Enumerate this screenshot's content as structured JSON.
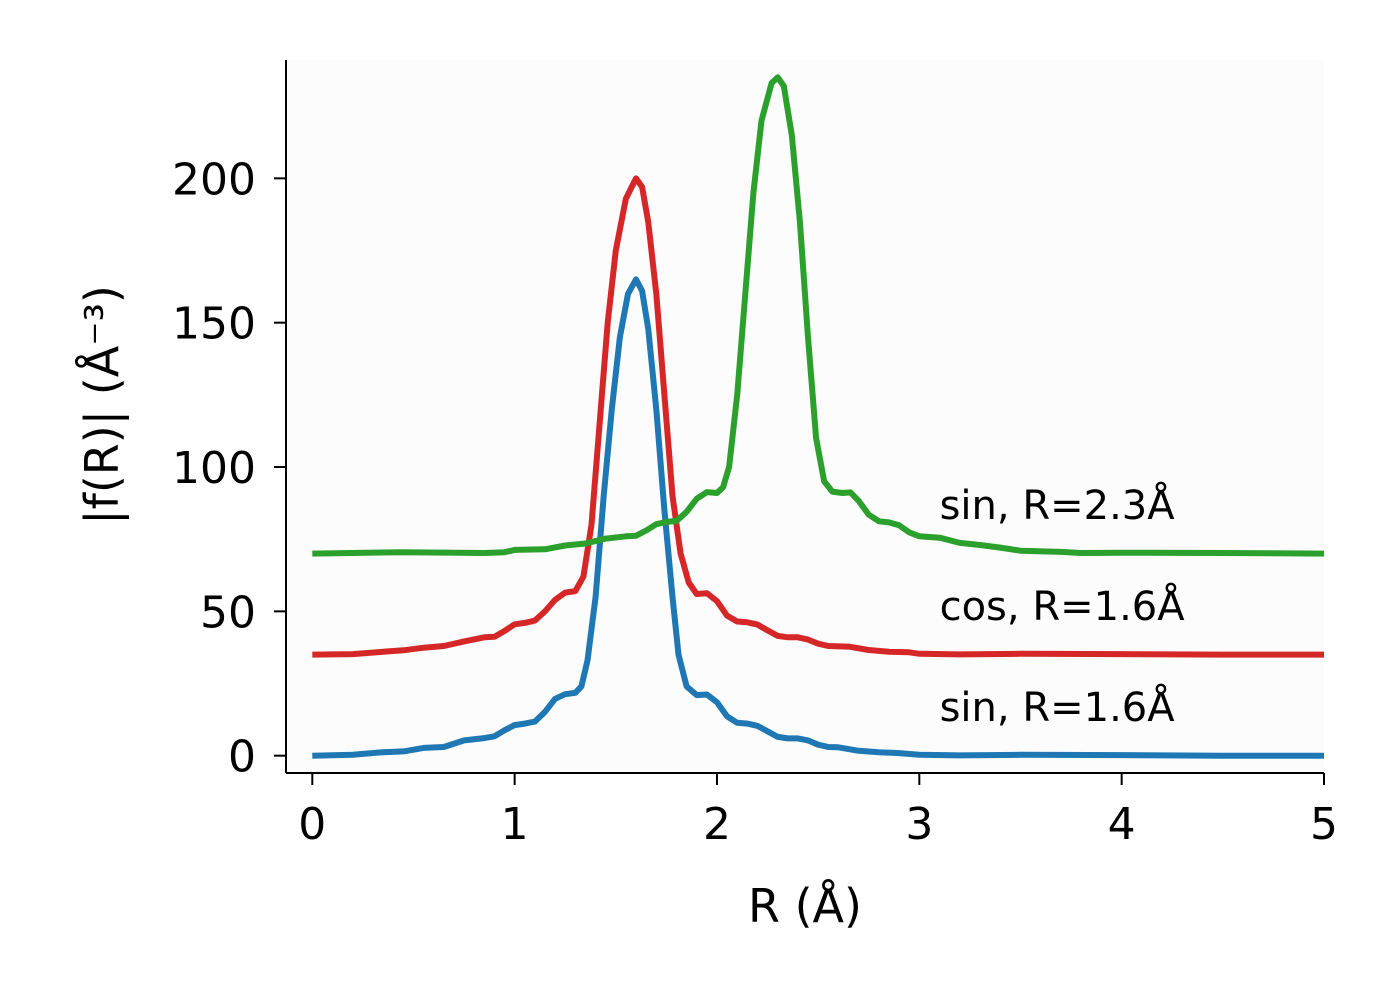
{
  "chart_data": {
    "type": "line",
    "xlabel": "R (Å)",
    "ylabel": "|f(R)| (Å⁻³)",
    "xlim": [
      -0.13,
      5.0
    ],
    "ylim": [
      -6,
      241
    ],
    "xticks": [
      0,
      1,
      2,
      3,
      4,
      5
    ],
    "yticks": [
      0,
      50,
      100,
      150,
      200
    ],
    "grid": false,
    "legend": "none",
    "series": [
      {
        "name": "sin, R=1.6Å",
        "color": "#1f77b4",
        "label_at": [
          3.1,
          12
        ],
        "points": [
          [
            0,
            0
          ],
          [
            0.2,
            0.3
          ],
          [
            0.35,
            1.2
          ],
          [
            0.45,
            1.5
          ],
          [
            0.55,
            2.7
          ],
          [
            0.65,
            3.0
          ],
          [
            0.75,
            5.3
          ],
          [
            0.85,
            6.1
          ],
          [
            0.9,
            6.7
          ],
          [
            0.95,
            8.8
          ],
          [
            1.0,
            10.6
          ],
          [
            1.05,
            11.1
          ],
          [
            1.1,
            11.8
          ],
          [
            1.15,
            15.2
          ],
          [
            1.2,
            19.7
          ],
          [
            1.25,
            21.3
          ],
          [
            1.3,
            21.8
          ],
          [
            1.33,
            24
          ],
          [
            1.36,
            33
          ],
          [
            1.4,
            55
          ],
          [
            1.44,
            90
          ],
          [
            1.48,
            120
          ],
          [
            1.52,
            145
          ],
          [
            1.56,
            160
          ],
          [
            1.6,
            165
          ],
          [
            1.63,
            161
          ],
          [
            1.66,
            148
          ],
          [
            1.7,
            120
          ],
          [
            1.74,
            85
          ],
          [
            1.78,
            55
          ],
          [
            1.81,
            35
          ],
          [
            1.85,
            24
          ],
          [
            1.9,
            21
          ],
          [
            1.95,
            21.2
          ],
          [
            2.0,
            18.5
          ],
          [
            2.05,
            13.6
          ],
          [
            2.1,
            11.4
          ],
          [
            2.15,
            11.1
          ],
          [
            2.2,
            10.3
          ],
          [
            2.25,
            8.4
          ],
          [
            2.3,
            6.5
          ],
          [
            2.35,
            6.0
          ],
          [
            2.4,
            6.0
          ],
          [
            2.45,
            5.3
          ],
          [
            2.5,
            3.8
          ],
          [
            2.55,
            3.0
          ],
          [
            2.6,
            2.9
          ],
          [
            2.7,
            1.7
          ],
          [
            2.8,
            1.2
          ],
          [
            2.9,
            0.9
          ],
          [
            3.0,
            0.3
          ],
          [
            3.2,
            0.1
          ],
          [
            3.5,
            0.3
          ],
          [
            4.0,
            0.2
          ],
          [
            4.5,
            0
          ],
          [
            5.0,
            0
          ]
        ]
      },
      {
        "name": "cos, R=1.6Å",
        "color": "#d62728",
        "label_at": [
          3.1,
          47
        ],
        "points": [
          [
            0,
            35
          ],
          [
            0.2,
            35.2
          ],
          [
            0.35,
            36
          ],
          [
            0.45,
            36.5
          ],
          [
            0.55,
            37.4
          ],
          [
            0.65,
            38.0
          ],
          [
            0.75,
            39.6
          ],
          [
            0.85,
            41.0
          ],
          [
            0.9,
            41.2
          ],
          [
            0.95,
            43.2
          ],
          [
            1.0,
            45.5
          ],
          [
            1.05,
            46.0
          ],
          [
            1.1,
            46.8
          ],
          [
            1.15,
            50
          ],
          [
            1.2,
            54
          ],
          [
            1.25,
            56.5
          ],
          [
            1.3,
            57
          ],
          [
            1.34,
            62
          ],
          [
            1.38,
            80
          ],
          [
            1.42,
            115
          ],
          [
            1.46,
            150
          ],
          [
            1.5,
            175
          ],
          [
            1.55,
            193
          ],
          [
            1.6,
            200
          ],
          [
            1.63,
            197
          ],
          [
            1.66,
            185
          ],
          [
            1.7,
            160
          ],
          [
            1.74,
            125
          ],
          [
            1.78,
            90
          ],
          [
            1.82,
            70
          ],
          [
            1.86,
            60
          ],
          [
            1.9,
            56
          ],
          [
            1.95,
            56.3
          ],
          [
            2.0,
            53.5
          ],
          [
            2.05,
            48.5
          ],
          [
            2.1,
            46.5
          ],
          [
            2.15,
            46.2
          ],
          [
            2.2,
            45.4
          ],
          [
            2.25,
            43.4
          ],
          [
            2.3,
            41.5
          ],
          [
            2.35,
            41.0
          ],
          [
            2.4,
            41.0
          ],
          [
            2.45,
            40.2
          ],
          [
            2.5,
            38.8
          ],
          [
            2.55,
            38.0
          ],
          [
            2.65,
            37.8
          ],
          [
            2.75,
            36.6
          ],
          [
            2.85,
            36.0
          ],
          [
            2.95,
            35.8
          ],
          [
            3.0,
            35.3
          ],
          [
            3.2,
            35.1
          ],
          [
            3.5,
            35.3
          ],
          [
            4.0,
            35.2
          ],
          [
            4.5,
            35
          ],
          [
            5.0,
            35
          ]
        ]
      },
      {
        "name": "sin, R=2.3Å",
        "color": "#2ca02c",
        "label_at": [
          3.1,
          82
        ],
        "points": [
          [
            0,
            70
          ],
          [
            0.45,
            70.5
          ],
          [
            0.85,
            70.2
          ],
          [
            0.95,
            70.5
          ],
          [
            1.0,
            71.3
          ],
          [
            1.15,
            71.5
          ],
          [
            1.25,
            72.8
          ],
          [
            1.35,
            73.5
          ],
          [
            1.45,
            75.2
          ],
          [
            1.55,
            76.0
          ],
          [
            1.6,
            76.2
          ],
          [
            1.65,
            78.0
          ],
          [
            1.7,
            80.2
          ],
          [
            1.75,
            81.0
          ],
          [
            1.8,
            81.3
          ],
          [
            1.85,
            84.5
          ],
          [
            1.9,
            89.0
          ],
          [
            1.95,
            91.3
          ],
          [
            2.0,
            91.0
          ],
          [
            2.03,
            93
          ],
          [
            2.06,
            100
          ],
          [
            2.1,
            125
          ],
          [
            2.14,
            160
          ],
          [
            2.18,
            195
          ],
          [
            2.22,
            220
          ],
          [
            2.27,
            233
          ],
          [
            2.3,
            235
          ],
          [
            2.33,
            232
          ],
          [
            2.37,
            215
          ],
          [
            2.41,
            185
          ],
          [
            2.45,
            145
          ],
          [
            2.49,
            110
          ],
          [
            2.53,
            95
          ],
          [
            2.57,
            91.5
          ],
          [
            2.62,
            91.0
          ],
          [
            2.66,
            91.2
          ],
          [
            2.7,
            88.3
          ],
          [
            2.75,
            83.5
          ],
          [
            2.8,
            81.2
          ],
          [
            2.85,
            80.8
          ],
          [
            2.9,
            79.8
          ],
          [
            2.95,
            77.4
          ],
          [
            3.0,
            76.0
          ],
          [
            3.1,
            75.5
          ],
          [
            3.2,
            73.7
          ],
          [
            3.3,
            73.0
          ],
          [
            3.4,
            72.1
          ],
          [
            3.5,
            71.0
          ],
          [
            3.7,
            70.6
          ],
          [
            3.8,
            70.2
          ],
          [
            4.0,
            70.3
          ],
          [
            4.5,
            70.2
          ],
          [
            5.0,
            70
          ]
        ]
      }
    ]
  }
}
